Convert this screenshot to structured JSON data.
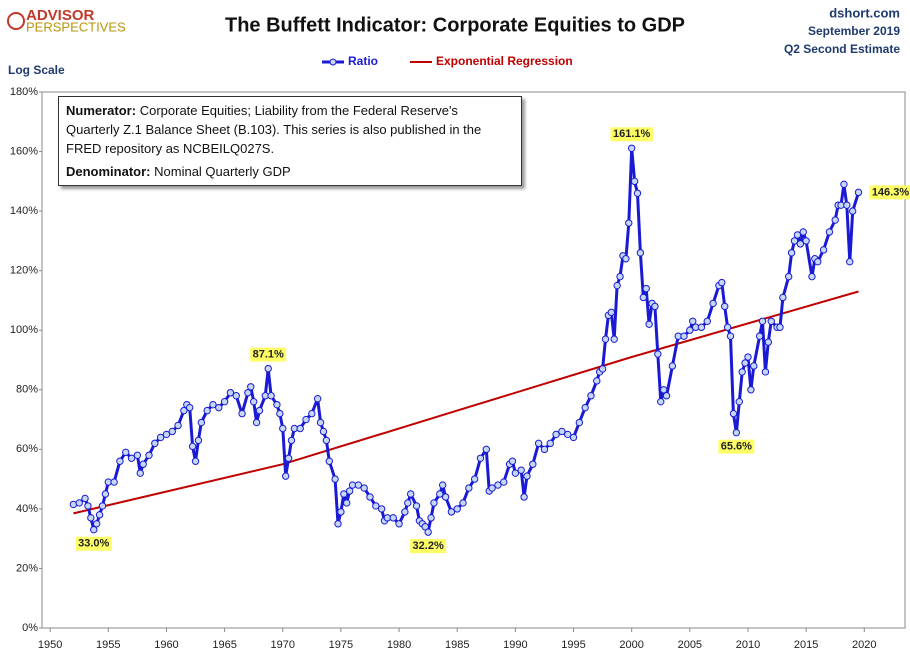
{
  "header": {
    "logo_top": "ADVISOR",
    "logo_bottom": "PERSPECTIVES",
    "source": "dshort.com",
    "date": "September 2019",
    "estimate": "Q2 Second Estimate"
  },
  "note": {
    "numerator_label": "Numerator:",
    "numerator_text": "Corporate Equities; Liability from the Federal Reserve's Quarterly Z.1 Balance Sheet (B.103). This series is also published in the FRED repository  as NCBEILQ027S.",
    "denominator_label": "Denominator:",
    "denominator_text": "Nominal Quarterly GDP"
  },
  "chart_data": {
    "type": "line",
    "title": "The Buffett Indicator: Corporate Equities to GDP",
    "y_axis_note": "Log Scale",
    "xlim": [
      1949.3,
      2023.5
    ],
    "xticks": [
      1950,
      1955,
      1960,
      1965,
      1970,
      1975,
      1980,
      1985,
      1990,
      1995,
      2000,
      2005,
      2010,
      2015,
      2020
    ],
    "ylim": [
      0,
      180
    ],
    "yticks": [
      {
        "value": 0,
        "label": "0%"
      },
      {
        "value": 20,
        "label": "20%"
      },
      {
        "value": 40,
        "label": "40%"
      },
      {
        "value": 60,
        "label": "60%"
      },
      {
        "value": 80,
        "label": "80%"
      },
      {
        "value": 100,
        "label": "100%"
      },
      {
        "value": 120,
        "label": "120%"
      },
      {
        "value": 140,
        "label": "140%"
      },
      {
        "value": 160,
        "label": "160%"
      },
      {
        "value": 180,
        "label": "180%"
      }
    ],
    "grid": false,
    "series": [
      {
        "name": "Ratio",
        "color": "#1a1ad4",
        "x": [
          1952.0,
          1952.5,
          1953.0,
          1953.25,
          1953.5,
          1953.75,
          1954.0,
          1954.25,
          1954.5,
          1954.75,
          1955.0,
          1955.5,
          1956.0,
          1956.5,
          1957.0,
          1957.5,
          1957.75,
          1958.0,
          1958.5,
          1959.0,
          1959.5,
          1960.0,
          1960.5,
          1961.0,
          1961.5,
          1961.75,
          1962.0,
          1962.25,
          1962.5,
          1962.75,
          1963.0,
          1963.5,
          1964.0,
          1964.5,
          1965.0,
          1965.5,
          1966.0,
          1966.5,
          1967.0,
          1967.25,
          1967.5,
          1967.75,
          1968.0,
          1968.5,
          1968.75,
          1969.0,
          1969.5,
          1969.75,
          1970.0,
          1970.25,
          1970.5,
          1970.75,
          1971.0,
          1971.5,
          1972.0,
          1972.5,
          1973.0,
          1973.25,
          1973.5,
          1973.75,
          1974.0,
          1974.5,
          1974.75,
          1975.0,
          1975.25,
          1975.5,
          1975.75,
          1976.0,
          1976.5,
          1977.0,
          1977.5,
          1978.0,
          1978.5,
          1978.75,
          1979.0,
          1979.5,
          1980.0,
          1980.5,
          1980.75,
          1981.0,
          1981.5,
          1981.75,
          1982.0,
          1982.25,
          1982.5,
          1982.75,
          1983.0,
          1983.5,
          1983.75,
          1984.0,
          1984.5,
          1985.0,
          1985.5,
          1986.0,
          1986.5,
          1987.0,
          1987.5,
          1987.75,
          1988.0,
          1988.5,
          1989.0,
          1989.5,
          1989.75,
          1990.0,
          1990.5,
          1990.75,
          1991.0,
          1991.5,
          1992.0,
          1992.5,
          1993.0,
          1993.5,
          1994.0,
          1994.5,
          1995.0,
          1995.5,
          1996.0,
          1996.5,
          1997.0,
          1997.25,
          1997.5,
          1997.75,
          1998.0,
          1998.25,
          1998.5,
          1998.75,
          1999.0,
          1999.25,
          1999.5,
          1999.75,
          2000.0,
          2000.25,
          2000.5,
          2000.75,
          2001.0,
          2001.25,
          2001.5,
          2001.75,
          2002.0,
          2002.25,
          2002.5,
          2002.75,
          2003.0,
          2003.5,
          2004.0,
          2004.5,
          2005.0,
          2005.25,
          2005.5,
          2006.0,
          2006.5,
          2007.0,
          2007.5,
          2007.75,
          2008.0,
          2008.25,
          2008.5,
          2008.75,
          2009.0,
          2009.25,
          2009.5,
          2009.75,
          2010.0,
          2010.25,
          2010.5,
          2011.0,
          2011.25,
          2011.5,
          2011.75,
          2012.0,
          2012.5,
          2012.75,
          2013.0,
          2013.5,
          2013.75,
          2014.0,
          2014.25,
          2014.5,
          2014.75,
          2015.0,
          2015.5,
          2015.75,
          2016.0,
          2016.5,
          2017.0,
          2017.5,
          2017.75,
          2018.0,
          2018.25,
          2018.5,
          2018.75,
          2019.0,
          2019.5
        ],
        "values": [
          41.5,
          42,
          43.5,
          41,
          37,
          33.0,
          35,
          38,
          41,
          45,
          49,
          49,
          56,
          59,
          57,
          58,
          52,
          55,
          58,
          62,
          64,
          65,
          66,
          68,
          73,
          75,
          74,
          61,
          56,
          63,
          69,
          73,
          75,
          74,
          76,
          79,
          78,
          72,
          79,
          81,
          76,
          69,
          73,
          78,
          87.1,
          78,
          75,
          72,
          67,
          51,
          57,
          63,
          67,
          67,
          70,
          72,
          77,
          69,
          66,
          63,
          56,
          50,
          35,
          39,
          45,
          42,
          46,
          48,
          48,
          47,
          44,
          41,
          40,
          36,
          37,
          37,
          35,
          39,
          42,
          45,
          41,
          36,
          35,
          34,
          32.2,
          37,
          42,
          45,
          48,
          44,
          39,
          40,
          42,
          47,
          50,
          57,
          60,
          46,
          47,
          48,
          49,
          55,
          56,
          52,
          53,
          44,
          51,
          55,
          62,
          60,
          62,
          65,
          66,
          65,
          64,
          69,
          74,
          78,
          83,
          86,
          87,
          97,
          105,
          106,
          97,
          115,
          118,
          125,
          124,
          136,
          161.1,
          150,
          146,
          126,
          111,
          114,
          102,
          109,
          108,
          92,
          76,
          80,
          78,
          88,
          98,
          98,
          100,
          103,
          101,
          101,
          103,
          109,
          115,
          116,
          108,
          101,
          98,
          72,
          65.6,
          76,
          86,
          89,
          91,
          80,
          88,
          98,
          103,
          86,
          96,
          103,
          101,
          101,
          111,
          118,
          126,
          130,
          132,
          129,
          133,
          130,
          118,
          124,
          123,
          127,
          133,
          137,
          142,
          142,
          149,
          142,
          123,
          140,
          146.3
        ]
      },
      {
        "name": "Exponential Regression",
        "color": "#c00000",
        "x": [
          1952,
          1970,
          1985,
          2000,
          2019.5
        ],
        "values": [
          38.5,
          55,
          73,
          91,
          113
        ]
      }
    ],
    "annotations": [
      {
        "x": 1953.75,
        "value": 33.0,
        "label": "33.0%"
      },
      {
        "x": 1968.75,
        "value": 87.1,
        "label": "87.1%"
      },
      {
        "x": 1982.5,
        "value": 32.2,
        "label": "32.2%"
      },
      {
        "x": 2000.0,
        "value": 161.1,
        "label": "161.1%"
      },
      {
        "x": 2009.0,
        "value": 65.6,
        "label": "65.6%"
      },
      {
        "x": 2019.5,
        "value": 146.3,
        "label": "146.3%"
      }
    ]
  }
}
